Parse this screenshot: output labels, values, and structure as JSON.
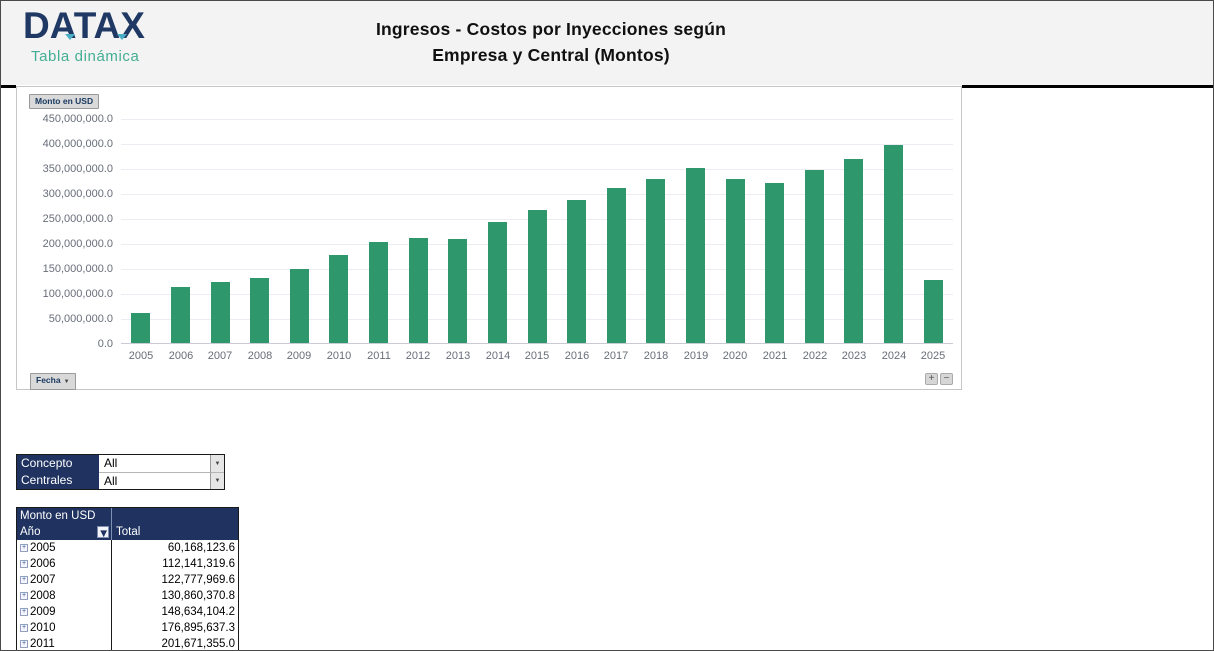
{
  "header": {
    "logo_text": "DATAX",
    "logo_subtitle": "Tabla dinámica",
    "title_line1": "Ingresos - Costos por Inyecciones según",
    "title_line2": "Empresa y Central (Montos)"
  },
  "chart": {
    "value_field_button": "Monto en USD",
    "axis_field_button": "Fecha",
    "expand_button": "+",
    "collapse_button": "−"
  },
  "chart_data": {
    "type": "bar",
    "title": "Ingresos - Costos por Inyecciones según Empresa y Central (Montos)",
    "categories": [
      "2005",
      "2006",
      "2007",
      "2008",
      "2009",
      "2010",
      "2011",
      "2012",
      "2013",
      "2014",
      "2015",
      "2016",
      "2017",
      "2018",
      "2019",
      "2020",
      "2021",
      "2022",
      "2023",
      "2024",
      "2025"
    ],
    "values": [
      60168123.6,
      112141319.6,
      122777969.6,
      130860370.8,
      148634104.2,
      176895637.3,
      201671355.0,
      210500000,
      208500000,
      242500000,
      265500000,
      286000000,
      309000000,
      328000000,
      350000000,
      328000000,
      319000000,
      346000000,
      368000000,
      396000000,
      125000000
    ],
    "y_ticks": [
      "450,000,000.0",
      "400,000,000.0",
      "350,000,000.0",
      "300,000,000.0",
      "250,000,000.0",
      "200,000,000.0",
      "150,000,000.0",
      "100,000,000.0",
      "50,000,000.0",
      "0.0"
    ],
    "ylim": [
      0,
      450000000
    ],
    "xlabel": "",
    "ylabel": "Monto en USD",
    "grid": true,
    "legend": false,
    "bar_color": "#2e976b"
  },
  "filters": {
    "rows": [
      {
        "label": "Concepto",
        "value": "All"
      },
      {
        "label": "Centrales",
        "value": "All"
      }
    ]
  },
  "pivot_table": {
    "value_field_label": "Monto en USD",
    "row_field_label": "Año",
    "total_label": "Total",
    "rows": [
      {
        "year": "2005",
        "total": "60,168,123.6"
      },
      {
        "year": "2006",
        "total": "112,141,319.6"
      },
      {
        "year": "2007",
        "total": "122,777,969.6"
      },
      {
        "year": "2008",
        "total": "130,860,370.8"
      },
      {
        "year": "2009",
        "total": "148,634,104.2"
      },
      {
        "year": "2010",
        "total": "176,895,637.3"
      },
      {
        "year": "2011",
        "total": "201,671,355.0"
      }
    ]
  },
  "colors": {
    "navy": "#1f3260",
    "teal": "#43ae93",
    "bar_green": "#2e976b",
    "header_background": "#f3f3f3"
  }
}
